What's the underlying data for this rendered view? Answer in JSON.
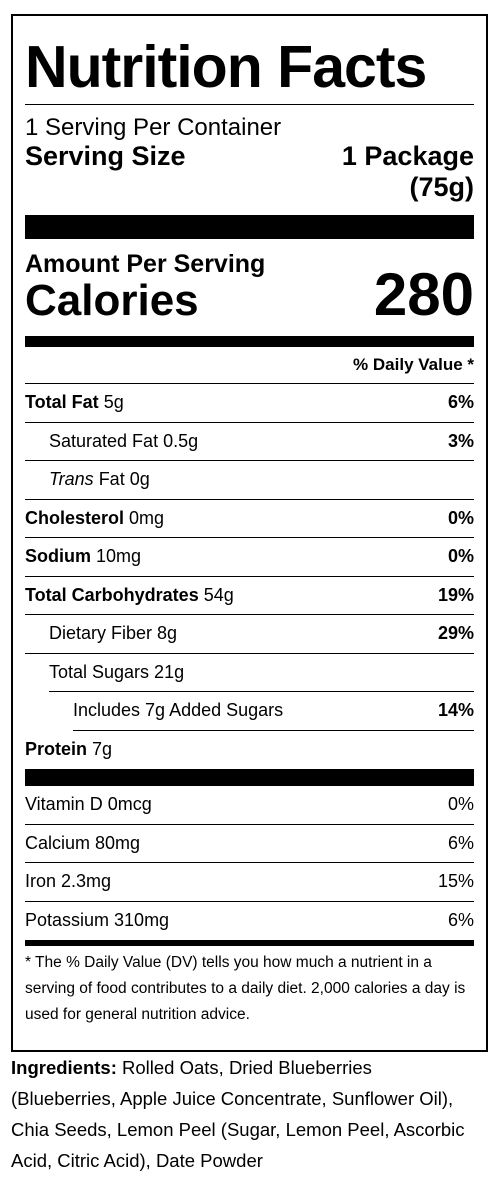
{
  "title": "Nutrition Facts",
  "servings_per_container": "1 Serving Per Container",
  "serving_size_label": "Serving Size",
  "serving_size_line1": "1 Package",
  "serving_size_line2": "(75g)",
  "amount_per_serving": "Amount Per Serving",
  "calories_label": "Calories",
  "calories_value": "280",
  "daily_value_header": "% Daily Value *",
  "nutrients": {
    "total_fat": {
      "name": "Total Fat",
      "amount": "5g",
      "dv": "6%"
    },
    "saturated_fat": {
      "name": "Saturated Fat 0.5g",
      "dv": "3%"
    },
    "trans_fat": {
      "name_italic": "Trans",
      "name_rest": " Fat 0g"
    },
    "cholesterol": {
      "name": "Cholesterol",
      "amount": "0mg",
      "dv": "0%"
    },
    "sodium": {
      "name": "Sodium",
      "amount": "10mg",
      "dv": "0%"
    },
    "total_carbs": {
      "name": "Total Carbohydrates",
      "amount": "54g",
      "dv": "19%"
    },
    "dietary_fiber": {
      "name": "Dietary Fiber 8g",
      "dv": "29%"
    },
    "total_sugars": {
      "name": "Total Sugars 21g"
    },
    "added_sugars": {
      "name": "Includes 7g Added Sugars",
      "dv": "14%"
    },
    "protein": {
      "name": "Protein",
      "amount": "7g"
    }
  },
  "vitamins": [
    {
      "name": "Vitamin D 0mcg",
      "dv": "0%"
    },
    {
      "name": "Calcium 80mg",
      "dv": "6%"
    },
    {
      "name": "Iron 2.3mg",
      "dv": "15%"
    },
    {
      "name": "Potassium 310mg",
      "dv": "6%"
    }
  ],
  "footnote": "* The % Daily Value (DV) tells you how much a nutrient in a serving of food contributes to a daily diet. 2,000 calories a day is used for general nutrition advice.",
  "ingredients_label": "Ingredients:",
  "ingredients_text": "Rolled Oats, Dried Blueberries (Blueberries, Apple Juice Concentrate, Sunflower Oil), Chia Seeds, Lemon Peel (Sugar, Lemon Peel, Ascorbic Acid, Citric Acid), Date Powder"
}
